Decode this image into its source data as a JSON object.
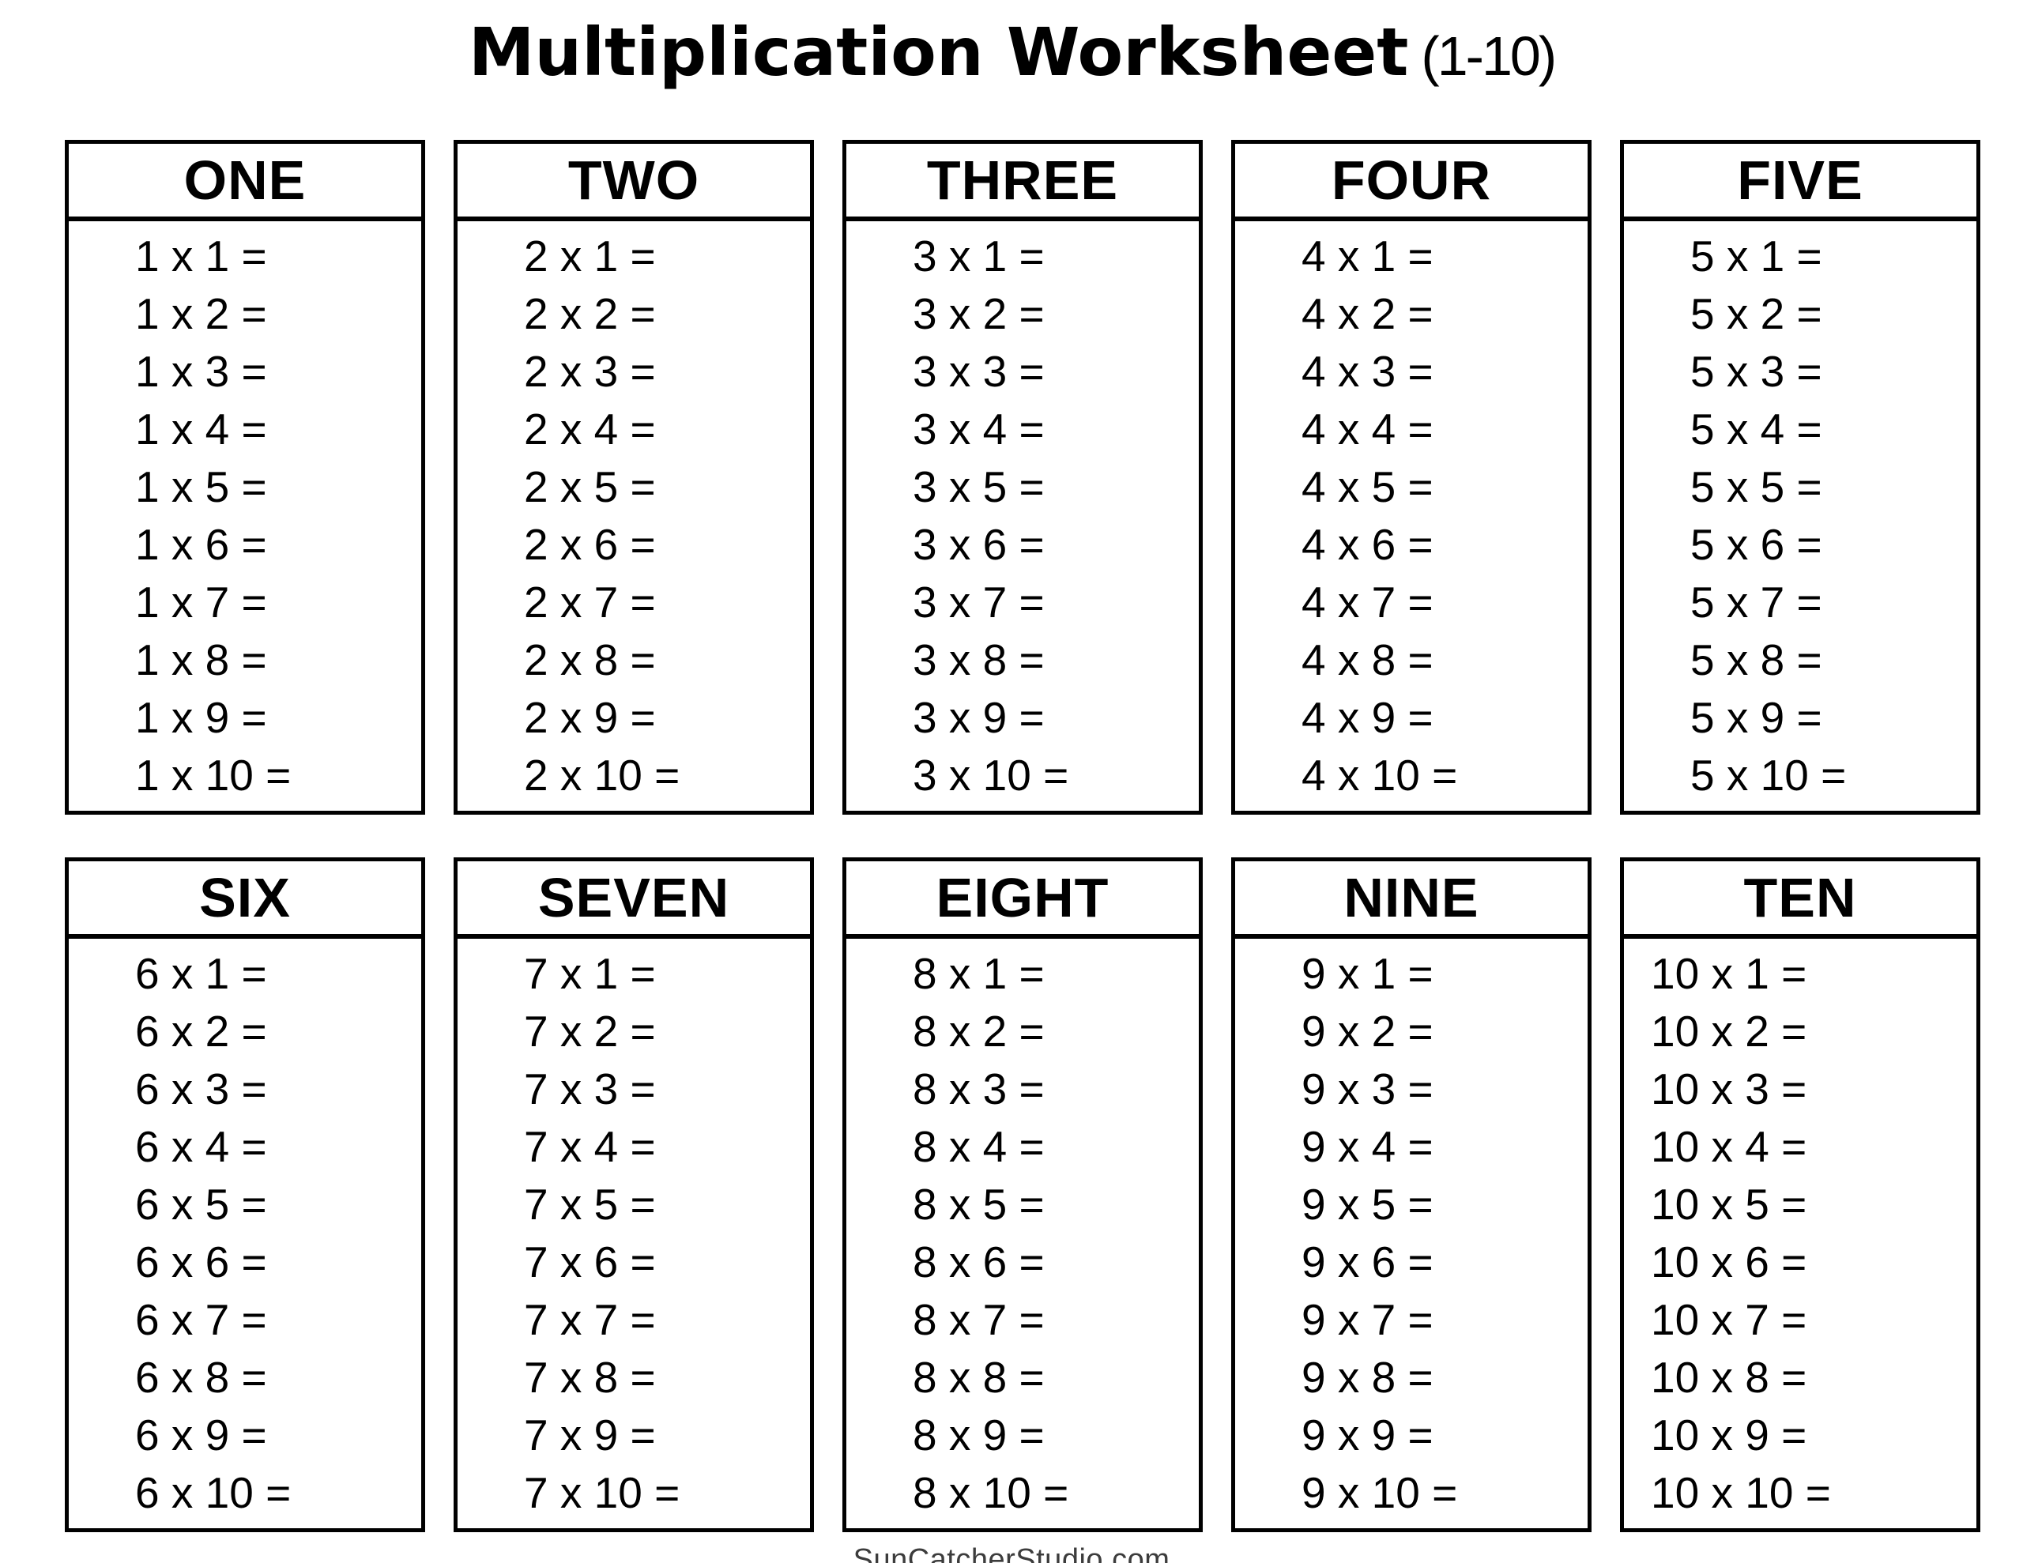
{
  "title": {
    "main": "Multiplication Worksheet",
    "range": "(1-10)"
  },
  "tables": [
    {
      "label": "ONE",
      "factor": 1,
      "rows": [
        "1 x 1 =",
        "1 x 2 =",
        "1 x 3 =",
        "1 x 4 =",
        "1 x 5 =",
        "1 x 6 =",
        "1 x 7 =",
        "1 x 8 =",
        "1 x 9 =",
        "1 x 10 ="
      ]
    },
    {
      "label": "TWO",
      "factor": 2,
      "rows": [
        "2 x 1 =",
        "2 x 2 =",
        "2 x 3 =",
        "2 x 4 =",
        "2 x 5 =",
        "2 x 6 =",
        "2 x 7 =",
        "2 x 8 =",
        "2 x 9 =",
        "2 x 10 ="
      ]
    },
    {
      "label": "THREE",
      "factor": 3,
      "rows": [
        "3 x 1 =",
        "3 x 2 =",
        "3 x 3 =",
        "3 x 4 =",
        "3 x 5 =",
        "3 x 6 =",
        "3 x 7 =",
        "3 x 8 =",
        "3 x 9 =",
        "3 x 10 ="
      ]
    },
    {
      "label": "FOUR",
      "factor": 4,
      "rows": [
        "4 x 1 =",
        "4 x 2 =",
        "4 x 3 =",
        "4 x 4 =",
        "4 x 5 =",
        "4 x 6 =",
        "4 x 7 =",
        "4 x 8 =",
        "4 x 9 =",
        "4 x 10 ="
      ]
    },
    {
      "label": "FIVE",
      "factor": 5,
      "rows": [
        "5 x 1 =",
        "5 x 2 =",
        "5 x 3 =",
        "5 x 4 =",
        "5 x 5 =",
        "5 x 6 =",
        "5 x 7 =",
        "5 x 8 =",
        "5 x 9 =",
        "5 x 10 ="
      ]
    },
    {
      "label": "SIX",
      "factor": 6,
      "rows": [
        "6 x 1 =",
        "6 x 2 =",
        "6 x 3 =",
        "6 x 4 =",
        "6 x 5 =",
        "6 x 6 =",
        "6 x 7 =",
        "6 x 8 =",
        "6 x 9 =",
        "6 x 10 ="
      ]
    },
    {
      "label": "SEVEN",
      "factor": 7,
      "rows": [
        "7 x 1 =",
        "7 x 2 =",
        "7 x 3 =",
        "7 x 4 =",
        "7 x 5 =",
        "7 x 6 =",
        "7 x 7 =",
        "7 x 8 =",
        "7 x 9 =",
        "7 x 10 ="
      ]
    },
    {
      "label": "EIGHT",
      "factor": 8,
      "rows": [
        "8 x 1 =",
        "8 x 2 =",
        "8 x 3 =",
        "8 x 4 =",
        "8 x 5 =",
        "8 x 6 =",
        "8 x 7 =",
        "8 x 8 =",
        "8 x 9 =",
        "8 x 10 ="
      ]
    },
    {
      "label": "NINE",
      "factor": 9,
      "rows": [
        "9 x 1 =",
        "9 x 2 =",
        "9 x 3 =",
        "9 x 4 =",
        "9 x 5 =",
        "9 x 6 =",
        "9 x 7 =",
        "9 x 8 =",
        "9 x 9 =",
        "9 x 10 ="
      ]
    },
    {
      "label": "TEN",
      "factor": 10,
      "rows": [
        "10 x 1 =",
        "10 x 2 =",
        "10 x 3 =",
        "10 x 4 =",
        "10 x 5 =",
        "10 x 6 =",
        "10 x 7 =",
        "10 x 8 =",
        "10 x 9 =",
        "10 x 10 ="
      ]
    }
  ],
  "footer": {
    "site": "SunCatcherStudio.com"
  }
}
